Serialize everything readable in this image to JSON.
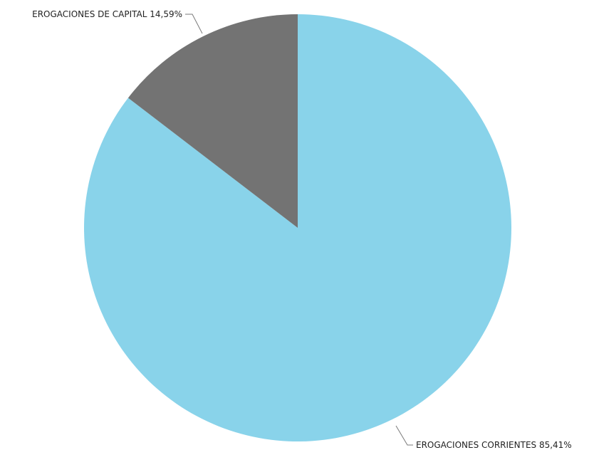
{
  "chart_data": {
    "type": "pie",
    "title": "",
    "start_angle_deg": 0,
    "direction": "clockwise",
    "slices": [
      {
        "label": "EROGACIONES CORRIENTES",
        "value": 85.41,
        "display": "85,41%",
        "color": "#89d3ea"
      },
      {
        "label": "EROGACIONES DE CAPITAL",
        "value": 14.59,
        "display": "14,59%",
        "color": "#737373"
      }
    ],
    "legend": "none",
    "data_labels": "outside"
  }
}
